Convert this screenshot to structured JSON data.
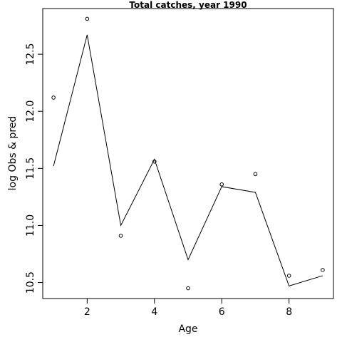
{
  "chart_data": {
    "type": "line",
    "title": "Total catches, year 1990",
    "xlabel": "Age",
    "ylabel": "log Obs & pred",
    "xlim": [
      0.68,
      9.32
    ],
    "ylim": [
      10.36,
      12.9
    ],
    "x_ticks": [
      2,
      4,
      6,
      8
    ],
    "y_ticks": [
      10.5,
      11.0,
      11.5,
      12.0,
      12.5
    ],
    "grid": false,
    "legend": "none",
    "series": [
      {
        "kind": "points",
        "x": [
          1,
          2,
          3,
          4,
          5,
          6,
          7,
          8,
          9
        ],
        "values": [
          12.12,
          12.81,
          10.91,
          11.56,
          10.45,
          11.36,
          11.45,
          10.56,
          10.61
        ]
      },
      {
        "kind": "line",
        "x": [
          1,
          2,
          3,
          4,
          5,
          6,
          7,
          8,
          9
        ],
        "values": [
          11.52,
          12.67,
          11.0,
          11.58,
          10.7,
          11.34,
          11.29,
          10.47,
          10.56
        ]
      }
    ]
  }
}
